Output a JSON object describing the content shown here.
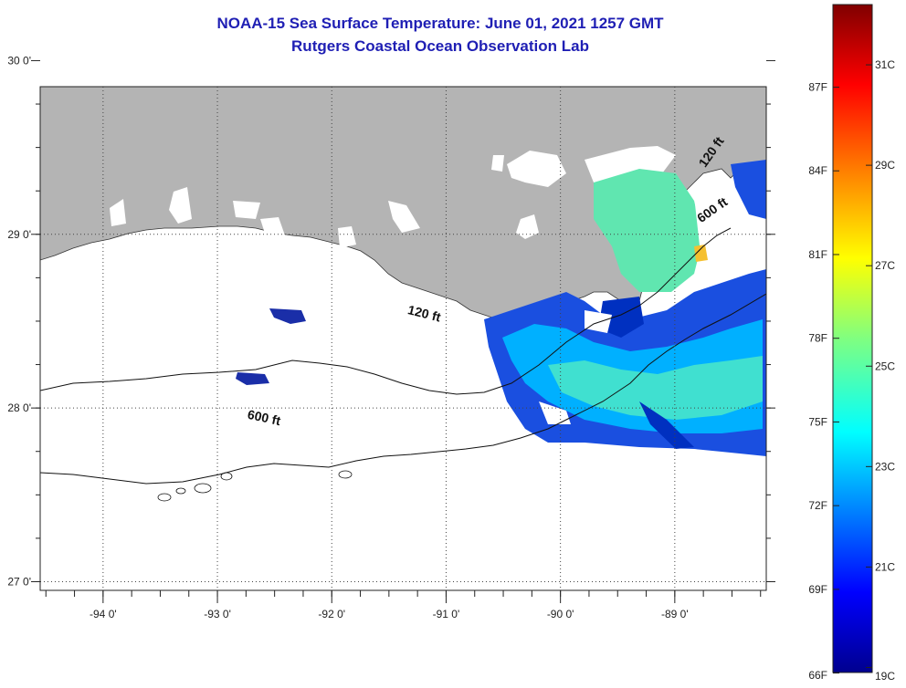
{
  "title": {
    "line1": "NOAA-15 Sea Surface Temperature:  June 01, 2021 1257 GMT",
    "line2": "Rutgers Coastal Ocean Observation Lab"
  },
  "map": {
    "lon_range": [
      -94.55,
      -88.2
    ],
    "lat_range": [
      26.95,
      29.85
    ],
    "lon_ticks": [
      {
        "value": -94,
        "label": "-94 0'"
      },
      {
        "value": -93,
        "label": "-93 0'"
      },
      {
        "value": -92,
        "label": "-92 0'"
      },
      {
        "value": -91,
        "label": "-91 0'"
      },
      {
        "value": -90,
        "label": "-90 0'"
      },
      {
        "value": -89,
        "label": "-89 0'"
      }
    ],
    "lat_ticks": [
      {
        "value": 30,
        "label": "30 0'"
      },
      {
        "value": 29,
        "label": "29 0'"
      },
      {
        "value": 28,
        "label": "28 0'"
      },
      {
        "value": 27,
        "label": "27 0'"
      }
    ],
    "land_color": "#b4b4b4",
    "grid": "dotted",
    "contours": [
      {
        "label": "120 ft"
      },
      {
        "label": "600 ft"
      }
    ],
    "contour_labels": [
      {
        "text": "120 ft",
        "lon": -91.2,
        "lat": 28.52,
        "angle": 14
      },
      {
        "text": "600 ft",
        "lon": -92.6,
        "lat": 27.92,
        "angle": 12
      },
      {
        "text": "120 ft",
        "lon": -88.65,
        "lat": 29.46,
        "angle": -55
      },
      {
        "text": "600 ft",
        "lon": -88.65,
        "lat": 29.12,
        "angle": -35
      }
    ]
  },
  "colorbar": {
    "colors": [
      "#00008f",
      "#0000ff",
      "#0080ff",
      "#00ffff",
      "#80ff80",
      "#ffff00",
      "#ff8000",
      "#ff0000",
      "#800000"
    ],
    "celsius_labels": [
      "31C",
      "29C",
      "27C",
      "25C",
      "23C",
      "21C",
      "19C"
    ],
    "fahrenheit_labels": [
      "87F",
      "84F",
      "81F",
      "78F",
      "75F",
      "72F",
      "69F",
      "66F"
    ]
  }
}
